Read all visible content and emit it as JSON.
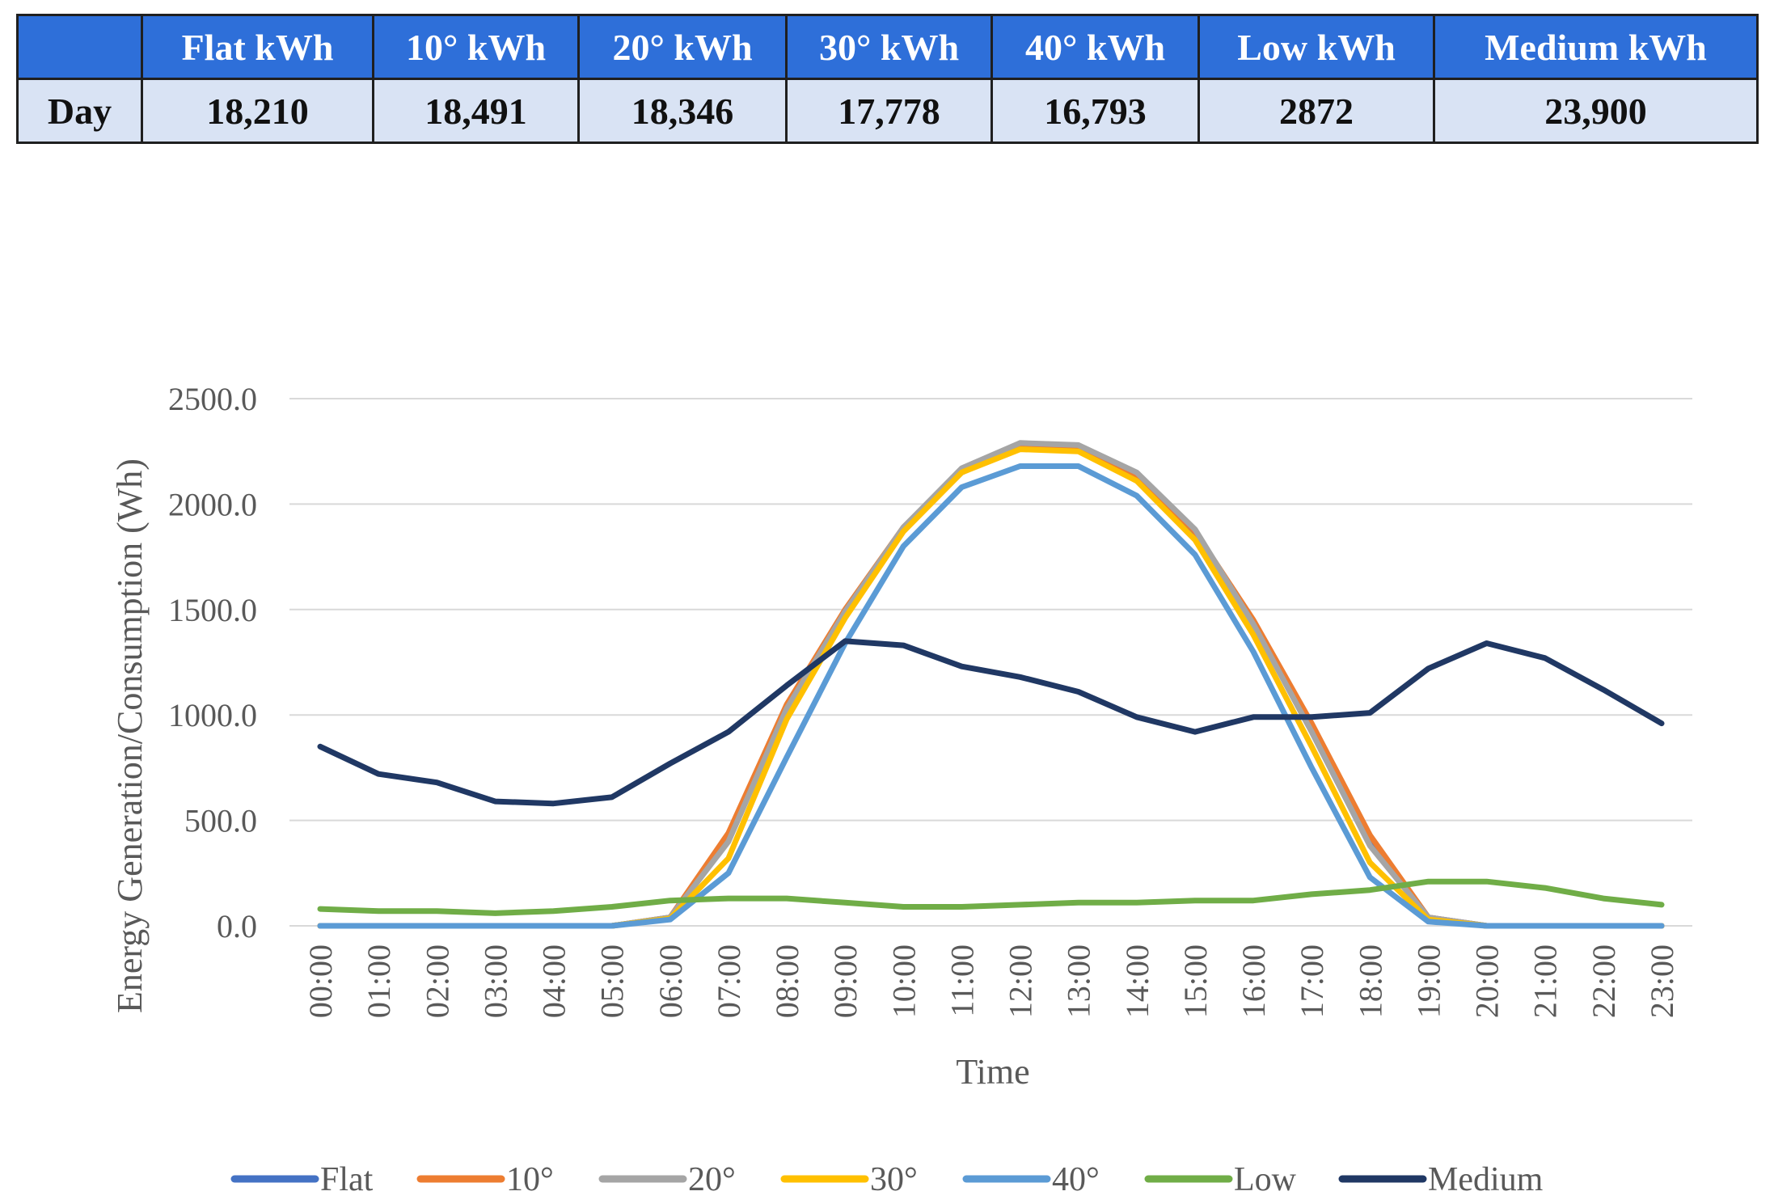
{
  "table": {
    "headers": [
      "",
      "Flat kWh",
      "10° kWh",
      "20° kWh",
      "30° kWh",
      "40° kWh",
      "Low kWh",
      "Medium kWh"
    ],
    "rows": [
      [
        "Day",
        "18,210",
        "18,491",
        "18,346",
        "17,778",
        "16,793",
        "2872",
        "23,900"
      ]
    ],
    "colors": {
      "header_bg": "#2e6fd9",
      "row_bg": "#d9e3f4"
    }
  },
  "chart_data": {
    "type": "line",
    "title": "",
    "xlabel": "Time",
    "ylabel": "Energy Generation/Consumption (Wh)",
    "ylim": [
      0,
      2500
    ],
    "yticks": [
      0,
      500,
      1000,
      1500,
      2000,
      2500
    ],
    "ytick_labels": [
      "0.0",
      "500.0",
      "1000.0",
      "1500.0",
      "2000.0",
      "2500.0"
    ],
    "grid": true,
    "legend_position": "bottom",
    "categories": [
      "00:00",
      "01:00",
      "02:00",
      "03:00",
      "04:00",
      "05:00",
      "06:00",
      "07:00",
      "08:00",
      "09:00",
      "10:00",
      "11:00",
      "12:00",
      "13:00",
      "14:00",
      "15:00",
      "16:00",
      "17:00",
      "18:00",
      "19:00",
      "20:00",
      "21:00",
      "22:00",
      "23:00"
    ],
    "series": [
      {
        "name": "Flat",
        "color": "#4472c4",
        "values": [
          0,
          0,
          0,
          0,
          0,
          0,
          40,
          430,
          1040,
          1490,
          1880,
          2150,
          2270,
          2260,
          2130,
          1860,
          1440,
          950,
          420,
          40,
          0,
          0,
          0,
          0
        ]
      },
      {
        "name": "10°",
        "color": "#ed7d31",
        "values": [
          0,
          0,
          0,
          0,
          0,
          0,
          40,
          440,
          1050,
          1500,
          1890,
          2160,
          2280,
          2270,
          2140,
          1870,
          1450,
          960,
          430,
          40,
          0,
          0,
          0,
          0
        ]
      },
      {
        "name": "20°",
        "color": "#a5a5a5",
        "values": [
          0,
          0,
          0,
          0,
          0,
          0,
          40,
          400,
          1030,
          1490,
          1890,
          2170,
          2290,
          2280,
          2150,
          1880,
          1430,
          920,
          380,
          40,
          0,
          0,
          0,
          0
        ]
      },
      {
        "name": "30°",
        "color": "#ffc000",
        "values": [
          0,
          0,
          0,
          0,
          0,
          0,
          35,
          320,
          980,
          1460,
          1870,
          2150,
          2260,
          2250,
          2110,
          1830,
          1380,
          850,
          300,
          30,
          0,
          0,
          0,
          0
        ]
      },
      {
        "name": "40°",
        "color": "#5b9bd5",
        "values": [
          0,
          0,
          0,
          0,
          0,
          0,
          30,
          250,
          800,
          1340,
          1800,
          2080,
          2180,
          2180,
          2040,
          1760,
          1300,
          750,
          230,
          20,
          0,
          0,
          0,
          0
        ]
      },
      {
        "name": "Low",
        "color": "#70ad47",
        "values": [
          80,
          70,
          70,
          60,
          70,
          90,
          120,
          130,
          130,
          110,
          90,
          90,
          100,
          110,
          110,
          120,
          120,
          150,
          170,
          210,
          210,
          180,
          130,
          100
        ]
      },
      {
        "name": "Medium",
        "color": "#203864",
        "values": [
          850,
          720,
          680,
          590,
          580,
          610,
          770,
          920,
          1140,
          1350,
          1330,
          1230,
          1180,
          1110,
          990,
          920,
          990,
          990,
          1010,
          1220,
          1340,
          1270,
          1120,
          960
        ]
      }
    ]
  }
}
